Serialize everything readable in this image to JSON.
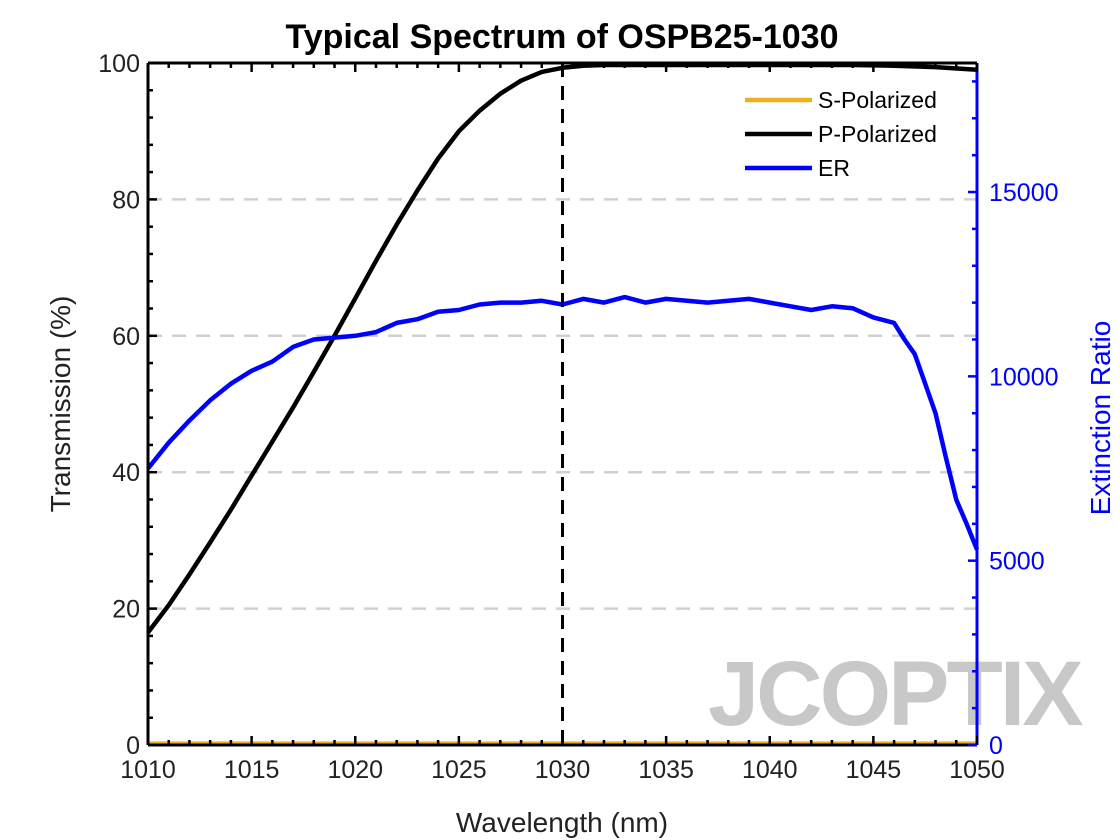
{
  "chart_data": {
    "type": "line",
    "title": "Typical Spectrum of OSPB25-1030",
    "xlabel": "Wavelength (nm)",
    "ylabel": "Transmission (%)",
    "y2label": "Extinction Ratio",
    "xlim": [
      1010,
      1050
    ],
    "ylim": [
      0,
      100
    ],
    "y2lim": [
      0,
      18500
    ],
    "xticks": [
      1010,
      1015,
      1020,
      1025,
      1030,
      1035,
      1040,
      1045,
      1050
    ],
    "yticks": [
      0,
      20,
      40,
      60,
      80,
      100
    ],
    "y2ticks": [
      0,
      5000,
      10000,
      15000
    ],
    "grid": "horizontal dashed",
    "reference_line_x": 1030,
    "legend_position": "top-right",
    "watermark": "JCOPTIX",
    "colors": {
      "s_polarized": "#edb120",
      "p_polarized": "#000000",
      "er": "#0000ff",
      "grid": "#d0d0d0",
      "right_axis": "#0000ff"
    },
    "series": [
      {
        "name": "S-Polarized",
        "axis": "left",
        "x": [
          1010,
          1020,
          1030,
          1040,
          1050
        ],
        "values": [
          0.2,
          0.2,
          0.2,
          0.2,
          0.2
        ]
      },
      {
        "name": "P-Polarized",
        "axis": "left",
        "x": [
          1010,
          1011,
          1012,
          1013,
          1014,
          1015,
          1016,
          1017,
          1018,
          1019,
          1020,
          1021,
          1022,
          1023,
          1024,
          1025,
          1026,
          1027,
          1028,
          1029,
          1030,
          1031,
          1032,
          1034,
          1036,
          1038,
          1040,
          1042,
          1044,
          1046,
          1048,
          1050
        ],
        "values": [
          16.5,
          20.5,
          25,
          29.7,
          34.5,
          39.5,
          44.5,
          49.5,
          54.7,
          60,
          65.5,
          71,
          76.3,
          81.3,
          86,
          90,
          93,
          95.5,
          97.4,
          98.7,
          99.3,
          99.6,
          99.7,
          99.7,
          99.7,
          99.7,
          99.7,
          99.7,
          99.7,
          99.6,
          99.4,
          99
        ]
      },
      {
        "name": "ER",
        "axis": "right",
        "x": [
          1010,
          1011,
          1012,
          1013,
          1014,
          1015,
          1016,
          1017,
          1018,
          1019,
          1020,
          1021,
          1022,
          1023,
          1024,
          1025,
          1026,
          1027,
          1028,
          1029,
          1030,
          1031,
          1032,
          1033,
          1034,
          1035,
          1036,
          1037,
          1038,
          1039,
          1040,
          1041,
          1042,
          1043,
          1044,
          1045,
          1046,
          1046.5,
          1047,
          1047.5,
          1048,
          1048.5,
          1049,
          1049.5,
          1050
        ],
        "values": [
          7500,
          8200,
          8800,
          9350,
          9800,
          10150,
          10400,
          10800,
          11000,
          11050,
          11100,
          11200,
          11450,
          11550,
          11750,
          11800,
          11950,
          12000,
          12000,
          12050,
          11950,
          12100,
          12000,
          12150,
          12000,
          12100,
          12050,
          12000,
          12050,
          12100,
          12000,
          11900,
          11800,
          11900,
          11850,
          11600,
          11450,
          11000,
          10600,
          9800,
          9000,
          7800,
          6650,
          6000,
          5300
        ]
      }
    ]
  }
}
